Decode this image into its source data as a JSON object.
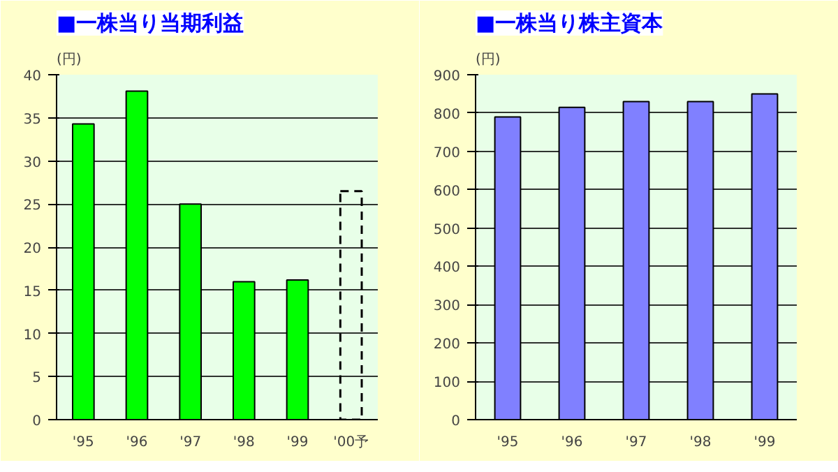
{
  "chart_data": [
    {
      "type": "bar",
      "title": "■一株当り当期利益",
      "ylabel": "(円)",
      "categories": [
        "'95",
        "'96",
        "'97",
        "'98",
        "'99",
        "'00予"
      ],
      "series": [
        {
          "color": "#00ff00",
          "values": [
            34.3,
            38.1,
            25,
            16,
            16.2,
            null
          ]
        },
        {
          "color": "#000000",
          "line_style": "dashed",
          "values": [
            null,
            null,
            null,
            null,
            null,
            26.5
          ]
        }
      ],
      "ylim": [
        0,
        40
      ],
      "yticks": [
        0,
        5,
        10,
        15,
        20,
        25,
        30,
        35,
        40
      ],
      "grid": "y"
    },
    {
      "type": "bar",
      "title": "■一株当り株主資本",
      "ylabel": "(円)",
      "categories": [
        "'95",
        "'96",
        "'97",
        "'98",
        "'99"
      ],
      "series": [
        {
          "color": "#8080ff",
          "values": [
            790,
            815,
            830,
            830,
            850
          ]
        }
      ],
      "ylim": [
        0,
        900
      ],
      "yticks": [
        0,
        100,
        200,
        300,
        400,
        500,
        600,
        700,
        800,
        900
      ],
      "grid": "y"
    }
  ]
}
